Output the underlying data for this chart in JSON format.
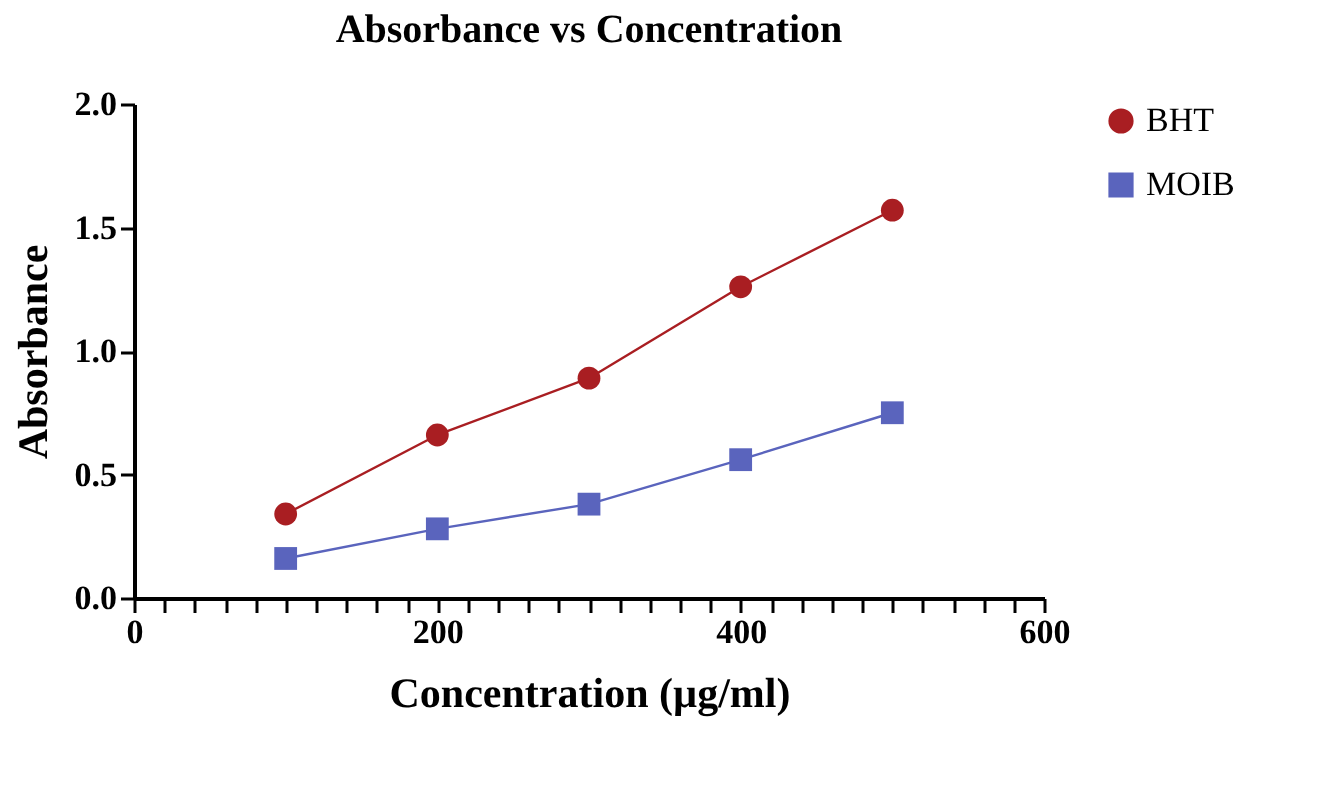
{
  "chart_data": {
    "type": "line",
    "title": "Absorbance vs Concentration",
    "xlabel": "Concentration (µg/ml)",
    "ylabel": "Absorbance",
    "x": [
      100,
      200,
      300,
      400,
      500
    ],
    "series": [
      {
        "name": "BHT",
        "color": "#a91e22",
        "marker": "circle",
        "values": [
          0.34,
          0.66,
          0.89,
          1.26,
          1.57
        ]
      },
      {
        "name": "MOIB",
        "color": "#5a64bd",
        "marker": "square",
        "values": [
          0.16,
          0.28,
          0.38,
          0.56,
          0.75
        ]
      }
    ],
    "xlim": [
      0,
      600
    ],
    "xticks": [
      0,
      {
        "value": 20,
        "label": null
      },
      {
        "value": 40,
        "label": null
      },
      {
        "value": 60,
        "label": null
      },
      {
        "value": 80,
        "label": null
      },
      {
        "value": 100,
        "label": null
      },
      {
        "value": 120,
        "label": null
      },
      {
        "value": 140,
        "label": null
      },
      {
        "value": 160,
        "label": null
      },
      {
        "value": 180,
        "label": null
      },
      200,
      {
        "value": 220,
        "label": null
      },
      {
        "value": 240,
        "label": null
      },
      {
        "value": 260,
        "label": null
      },
      {
        "value": 280,
        "label": null
      },
      {
        "value": 300,
        "label": null
      },
      {
        "value": 320,
        "label": null
      },
      {
        "value": 340,
        "label": null
      },
      {
        "value": 360,
        "label": null
      },
      {
        "value": 380,
        "label": null
      },
      400,
      {
        "value": 420,
        "label": null
      },
      {
        "value": 440,
        "label": null
      },
      {
        "value": 460,
        "label": null
      },
      {
        "value": 480,
        "label": null
      },
      {
        "value": 500,
        "label": null
      },
      {
        "value": 520,
        "label": null
      },
      {
        "value": 540,
        "label": null
      },
      {
        "value": 560,
        "label": null
      },
      {
        "value": 580,
        "label": null
      },
      600
    ],
    "ylim": [
      0,
      2.0
    ],
    "yticks": [
      {
        "value": 0,
        "label": "0.0"
      },
      0.5,
      {
        "value": 1,
        "label": "1.0"
      },
      1.5,
      {
        "value": 2,
        "label": "2.0"
      }
    ],
    "grid": false,
    "legend": "top right",
    "line_style": "solid"
  }
}
